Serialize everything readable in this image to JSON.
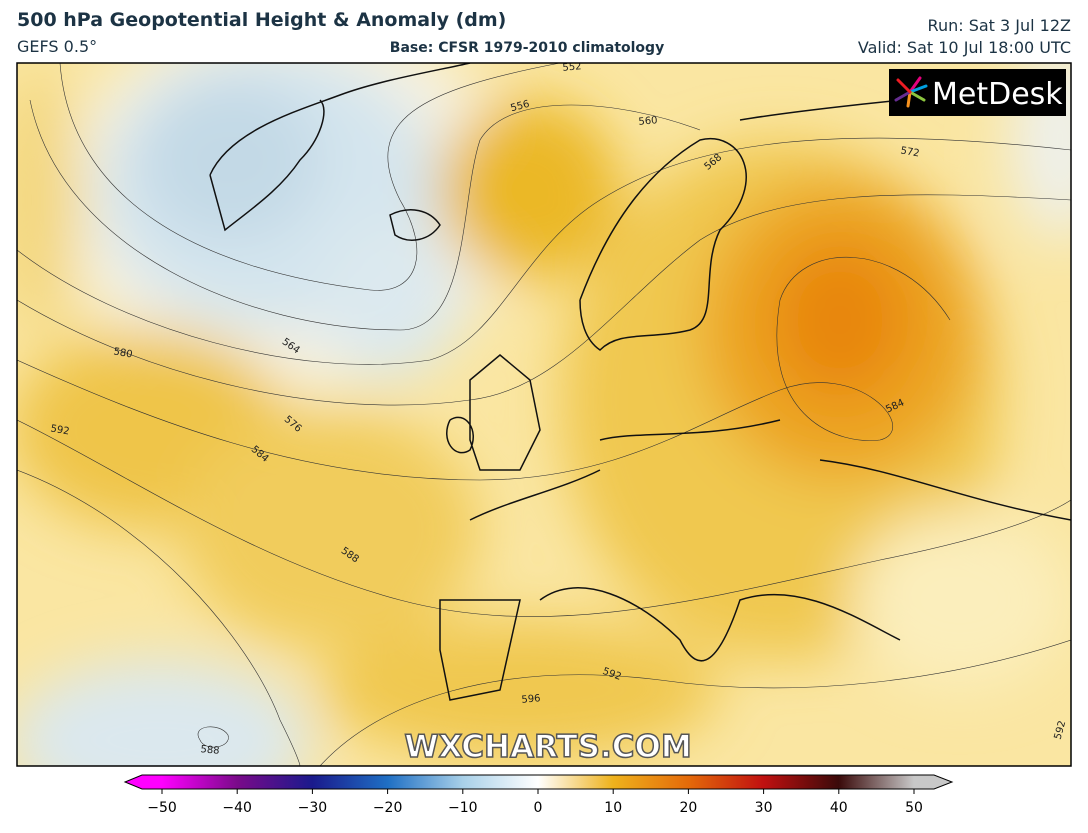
{
  "header": {
    "title": "500 hPa Geopotential Height & Anomaly (dm)",
    "model": "GEFS 0.5°",
    "base": "Base: CFSR 1979-2010 climatology",
    "run": "Run: Sat 3 Jul 12Z",
    "valid": "Valid: Sat 10 Jul 18:00 UTC"
  },
  "map": {
    "contour_labels": [
      552,
      556,
      560,
      568,
      572,
      564,
      580,
      592,
      576,
      584,
      588,
      584,
      592,
      596,
      588,
      592
    ],
    "watermark": "WXCHARTS.COM",
    "logo": "MetDesk"
  },
  "colorbar": {
    "ticks": [
      {
        "value": -50,
        "label": "−50"
      },
      {
        "value": -40,
        "label": "−40"
      },
      {
        "value": -30,
        "label": "−30"
      },
      {
        "value": -20,
        "label": "−20"
      },
      {
        "value": -10,
        "label": "−10"
      },
      0,
      10,
      20,
      30,
      40,
      50
    ],
    "colors": [
      "#ff00ff",
      "#7a0a8a",
      "#1a1a8c",
      "#1f6fc4",
      "#a8d0e8",
      "#ffffff",
      "#eeb21c",
      "#e46a0a",
      "#c01010",
      "#3a0a0a",
      "#c8c8c8"
    ]
  }
}
